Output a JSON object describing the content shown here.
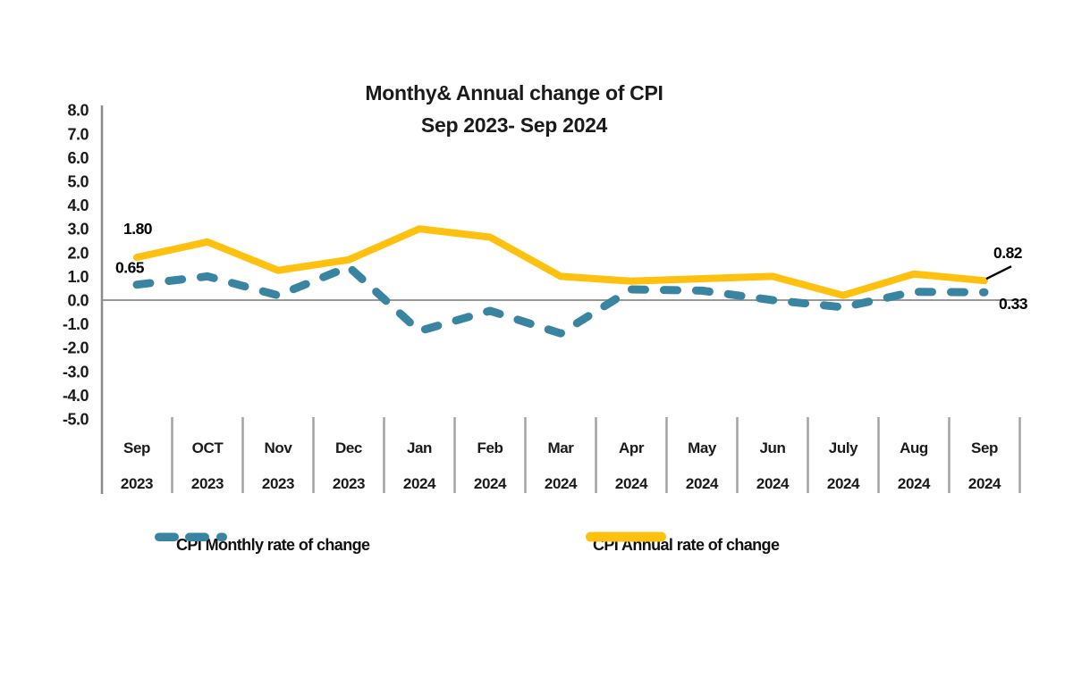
{
  "title": {
    "line1": "Monthy& Annual change of CPI",
    "line2": "Sep 2023- Sep 2024"
  },
  "legend": {
    "monthly_label": "CPI Monthly rate of change",
    "annual_label": "CPI Annual rate of change"
  },
  "colors": {
    "monthly": "#3984A1",
    "annual": "#FFC110",
    "axis": "#8C8C8C",
    "zero_line": "#999999",
    "divider": "#A3A3A3",
    "text": "#1a1a1a",
    "annotation": "#000000"
  },
  "chart_data": {
    "type": "line",
    "title": "Monthy& Annual change of CPI",
    "subtitle": "Sep 2023- Sep 2024",
    "xlabel": "",
    "ylabel": "",
    "ylim": [
      -5.0,
      8.0
    ],
    "grid": "zero-line-only",
    "legend_position": "bottom",
    "y_ticks": [
      "8.0",
      "7.0",
      "6.0",
      "5.0",
      "4.0",
      "3.0",
      "2.0",
      "1.0",
      "0.0",
      "-1.0",
      "-2.0",
      "-3.0",
      "-4.0",
      "-5.0"
    ],
    "categories": [
      {
        "month": "Sep",
        "year": "2023"
      },
      {
        "month": "OCT",
        "year": "2023"
      },
      {
        "month": "Nov",
        "year": "2023"
      },
      {
        "month": "Dec",
        "year": "2023"
      },
      {
        "month": "Jan",
        "year": "2024"
      },
      {
        "month": "Feb",
        "year": "2024"
      },
      {
        "month": "Mar",
        "year": "2024"
      },
      {
        "month": "Apr",
        "year": "2024"
      },
      {
        "month": "May",
        "year": "2024"
      },
      {
        "month": "Jun",
        "year": "2024"
      },
      {
        "month": "July",
        "year": "2024"
      },
      {
        "month": "Aug",
        "year": "2024"
      },
      {
        "month": "Sep",
        "year": "2024"
      }
    ],
    "series": [
      {
        "name": "CPI Monthly rate of change",
        "key": "monthly",
        "style": "dashed",
        "values": [
          0.65,
          1.0,
          0.2,
          1.4,
          -1.3,
          -0.45,
          -1.4,
          0.45,
          0.4,
          0.0,
          -0.3,
          0.35,
          0.33
        ]
      },
      {
        "name": "CPI Annual rate of change",
        "key": "annual",
        "style": "solid",
        "values": [
          1.8,
          2.45,
          1.25,
          1.7,
          3.0,
          2.65,
          1.0,
          0.8,
          0.9,
          1.0,
          0.2,
          1.1,
          0.82
        ]
      }
    ],
    "annotations": [
      {
        "label": "1.80",
        "series": "annual",
        "index": 0,
        "leader": false
      },
      {
        "label": "0.65",
        "series": "monthly",
        "index": 0,
        "leader": false
      },
      {
        "label": "0.82",
        "series": "annual",
        "index": 12,
        "leader": true
      },
      {
        "label": "0.33",
        "series": "monthly",
        "index": 12,
        "leader": false
      }
    ]
  }
}
